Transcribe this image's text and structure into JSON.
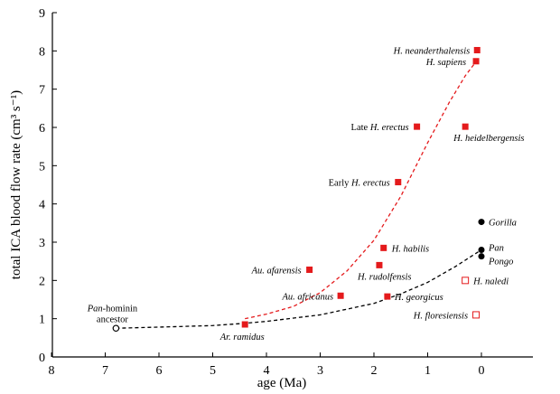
{
  "chart_data": {
    "type": "scatter",
    "xlabel": "age (Ma)",
    "ylabel": "total ICA blood flow rate (cm³ s⁻¹)",
    "xlim": [
      8,
      0
    ],
    "ylim": [
      0,
      9
    ],
    "x_reversed": true,
    "xticks": [
      "8",
      "7",
      "6",
      "5",
      "4",
      "3",
      "2",
      "1",
      "0"
    ],
    "yticks": [
      "0",
      "1",
      "2",
      "3",
      "4",
      "5",
      "6",
      "7",
      "8",
      "9"
    ],
    "grid": false,
    "points": [
      {
        "label": [
          "Pan",
          "-hominin",
          "ancestor"
        ],
        "italic": [
          true,
          false,
          false
        ],
        "x": 6.8,
        "y": 0.75,
        "color": "#000000",
        "marker": "open-circle"
      },
      {
        "label": [
          "Ar. ramidus"
        ],
        "italic": [
          true
        ],
        "x": 4.4,
        "y": 0.85,
        "color": "#e41a1c",
        "marker": "filled-square"
      },
      {
        "label": [
          "Au. afarensis"
        ],
        "italic": [
          true
        ],
        "x": 3.2,
        "y": 2.28,
        "color": "#e41a1c",
        "marker": "filled-square"
      },
      {
        "label": [
          "Au. africanus"
        ],
        "italic": [
          true
        ],
        "x": 2.62,
        "y": 1.6,
        "color": "#e41a1c",
        "marker": "filled-square"
      },
      {
        "label": [
          "H. habilis"
        ],
        "italic": [
          true
        ],
        "x": 1.82,
        "y": 2.85,
        "color": "#e41a1c",
        "marker": "filled-square"
      },
      {
        "label": [
          "H. rudolfensis"
        ],
        "italic": [
          true
        ],
        "x": 1.9,
        "y": 2.4,
        "color": "#e41a1c",
        "marker": "filled-square"
      },
      {
        "label": [
          "H. georgicus"
        ],
        "italic": [
          true
        ],
        "x": 1.75,
        "y": 1.58,
        "color": "#e41a1c",
        "marker": "filled-square"
      },
      {
        "label": [
          "Early ",
          "H. erectus"
        ],
        "italic": [
          false,
          true
        ],
        "x": 1.55,
        "y": 4.57,
        "color": "#e41a1c",
        "marker": "filled-square"
      },
      {
        "label": [
          "Late ",
          "H. erectus"
        ],
        "italic": [
          false,
          true
        ],
        "x": 1.2,
        "y": 6.02,
        "color": "#e41a1c",
        "marker": "filled-square"
      },
      {
        "label": [
          "H. heidelbergensis"
        ],
        "italic": [
          true
        ],
        "x": 0.3,
        "y": 6.02,
        "color": "#e41a1c",
        "marker": "filled-square"
      },
      {
        "label": [
          "H. neanderthalensis"
        ],
        "italic": [
          true
        ],
        "x": 0.08,
        "y": 8.02,
        "color": "#e41a1c",
        "marker": "filled-square"
      },
      {
        "label": [
          "H. sapiens"
        ],
        "italic": [
          true
        ],
        "x": 0.1,
        "y": 7.73,
        "color": "#e41a1c",
        "marker": "filled-square"
      },
      {
        "label": [
          "H. naledi"
        ],
        "italic": [
          true
        ],
        "x": 0.3,
        "y": 2.0,
        "color": "#e41a1c",
        "marker": "open-square"
      },
      {
        "label": [
          "H. floresiensis"
        ],
        "italic": [
          true
        ],
        "x": 0.1,
        "y": 1.1,
        "color": "#e41a1c",
        "marker": "open-square"
      },
      {
        "label": [
          "Gorilla"
        ],
        "italic": [
          true
        ],
        "x": 0.0,
        "y": 3.53,
        "color": "#000000",
        "marker": "filled-circle"
      },
      {
        "label": [
          "Pan"
        ],
        "italic": [
          true
        ],
        "x": 0.0,
        "y": 2.8,
        "color": "#000000",
        "marker": "filled-circle"
      },
      {
        "label": [
          "Pongo"
        ],
        "italic": [
          true
        ],
        "x": 0.0,
        "y": 2.63,
        "color": "#000000",
        "marker": "filled-circle"
      }
    ],
    "trend_lines": [
      {
        "color": "#e41a1c",
        "style": "dashed",
        "x": [
          4.4,
          4.0,
          3.5,
          3.0,
          2.5,
          2.0,
          1.5,
          1.0,
          0.6,
          0.3,
          0.1
        ],
        "y": [
          1.0,
          1.12,
          1.32,
          1.68,
          2.25,
          3.05,
          4.2,
          5.6,
          6.65,
          7.35,
          7.72
        ]
      },
      {
        "color": "#000000",
        "style": "dashed",
        "x": [
          6.8,
          6.0,
          5.0,
          4.4,
          4.0,
          3.0,
          2.0,
          1.5,
          1.0,
          0.5,
          0.0
        ],
        "y": [
          0.75,
          0.78,
          0.82,
          0.88,
          0.93,
          1.1,
          1.4,
          1.65,
          1.95,
          2.35,
          2.8
        ]
      }
    ]
  }
}
